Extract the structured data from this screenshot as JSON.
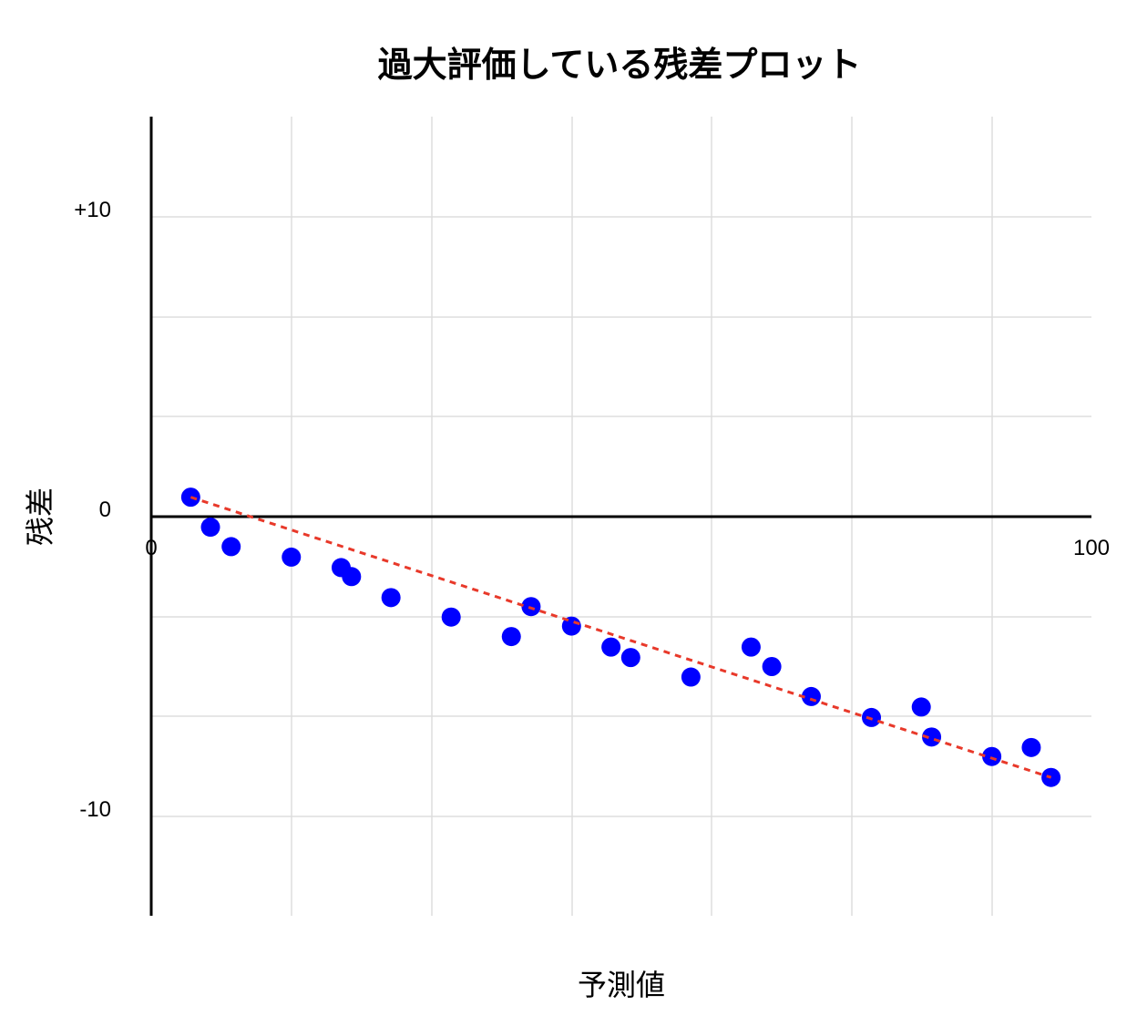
{
  "chart_data": {
    "type": "scatter",
    "title": "過大評価している残差プロット",
    "xlabel": "予測値",
    "ylabel": "残差",
    "xlim": [
      0,
      100
    ],
    "ylim": [
      -13.3,
      13.3
    ],
    "x_tick_labels": [
      {
        "value": 0,
        "label": "0"
      },
      {
        "value": 100,
        "label": "100"
      }
    ],
    "y_tick_labels": [
      {
        "value": 10,
        "label": "+10"
      },
      {
        "value": 0,
        "label": "0"
      },
      {
        "value": -10,
        "label": "-10"
      }
    ],
    "grid": true,
    "point_color": "#0000ff",
    "trend_color": "#e8392a",
    "points": [
      {
        "x": 4.2,
        "y": 0.65
      },
      {
        "x": 6.3,
        "y": -0.35
      },
      {
        "x": 8.5,
        "y": -1.0
      },
      {
        "x": 14.9,
        "y": -1.35
      },
      {
        "x": 20.2,
        "y": -1.7
      },
      {
        "x": 21.3,
        "y": -2.0
      },
      {
        "x": 25.5,
        "y": -2.7
      },
      {
        "x": 31.9,
        "y": -3.35
      },
      {
        "x": 38.3,
        "y": -4.0
      },
      {
        "x": 40.4,
        "y": -3.0
      },
      {
        "x": 44.7,
        "y": -3.65
      },
      {
        "x": 48.9,
        "y": -4.35
      },
      {
        "x": 51.0,
        "y": -4.7
      },
      {
        "x": 57.4,
        "y": -5.35
      },
      {
        "x": 63.8,
        "y": -4.35
      },
      {
        "x": 66.0,
        "y": -5.0
      },
      {
        "x": 70.2,
        "y": -6.0
      },
      {
        "x": 76.6,
        "y": -6.7
      },
      {
        "x": 81.9,
        "y": -6.35
      },
      {
        "x": 83.0,
        "y": -7.35
      },
      {
        "x": 89.4,
        "y": -8.0
      },
      {
        "x": 93.6,
        "y": -7.7
      },
      {
        "x": 95.7,
        "y": -8.7
      }
    ],
    "trend_line": {
      "x": [
        4.2,
        95.7
      ],
      "y": [
        0.65,
        -8.7
      ]
    }
  }
}
